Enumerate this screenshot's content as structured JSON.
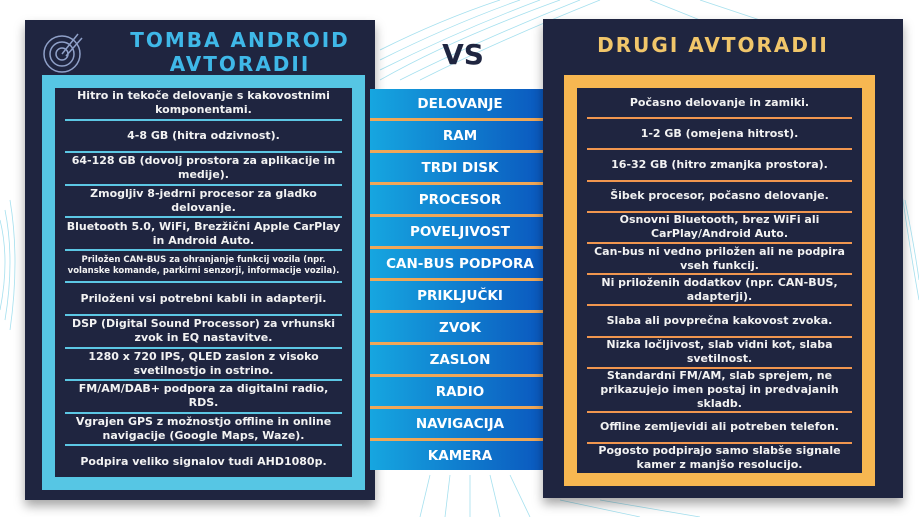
{
  "left": {
    "title": "TOMBA ANDROID AVTORADII",
    "accent": "#56c6e4",
    "items": [
      "Hitro in tekoče delovanje s kakovostnimi komponentami.",
      "4-8 GB (hitra odzivnost).",
      "64-128 GB (dovolj prostora za aplikacije in medije).",
      "Zmogljiv 8-jedrni procesor za gladko delovanje.",
      "Bluetooth 5.0, WiFi, Brezžični Apple CarPlay in Android Auto.",
      "Priložen CAN-BUS  za ohranjanje funkcij vozila (npr. volanske komande, parkirni senzorji, informacije vozila).",
      "Priloženi vsi potrebni kabli in adapterji.",
      "DSP (Digital Sound Processor) za vrhunski zvok in EQ nastavitve.",
      "1280 x 720 IPS, QLED zaslon z visoko svetilnostjo in ostrino.",
      "FM/AM/DAB+ podpora za digitalni radio, RDS.",
      "Vgrajen GPS z možnostjo offline in online navigacije (Google Maps, Waze).",
      "Podpira veliko signalov tudi AHD1080p."
    ]
  },
  "vs": "VS",
  "categories": [
    "DELOVANJE",
    "RAM",
    "TRDI DISK",
    "PROCESOR",
    "POVELJIVOST",
    "CAN-BUS PODPORA",
    "PRIKLJUČKI",
    "ZVOK",
    "ZASLON",
    "RADIO",
    "NAVIGACIJA",
    "KAMERA"
  ],
  "right": {
    "title": "DRUGI AVTORADII",
    "accent": "#f7b751",
    "items": [
      "Počasno delovanje in zamiki.",
      "1-2 GB (omejena hitrost).",
      "16-32 GB (hitro zmanjka prostora).",
      "Šibek procesor, počasno delovanje.",
      "Osnovni Bluetooth, brez WiFi ali CarPlay/Android Auto.",
      "Can-bus ni vedno priložen ali ne podpira vseh funkcij.",
      "Ni priloženih dodatkov (npr. CAN-BUS, adapterji).",
      "Slaba ali povprečna kakovost zvoka.",
      "Nizka ločljivost, slab vidni kot, slaba svetilnost.",
      "Standardni FM/AM, slab sprejem, ne prikazujejo imen postaj in predvajanih skladb.",
      "Offline zemljevidi ali potreben telefon.",
      "Pogosto podpirajo samo slabše signale kamer z manjšo resolucijo."
    ]
  }
}
